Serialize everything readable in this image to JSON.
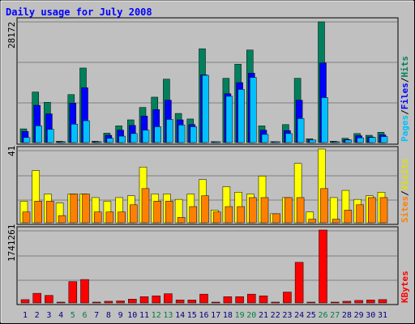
{
  "chart_data": [
    {
      "type": "bar",
      "panel": "hits-files-pages",
      "title": "Daily usage for July 2008",
      "ymax_label": "28172",
      "ylim": [
        0,
        28172
      ],
      "legend_labels": [
        "Pages",
        "Files",
        "Hits"
      ],
      "legend_colors": [
        "#00c0ff",
        "#0000ff",
        "#00805c"
      ],
      "categories": [
        "1",
        "2",
        "3",
        "4",
        "5",
        "6",
        "7",
        "8",
        "9",
        "10",
        "11",
        "12",
        "13",
        "14",
        "15",
        "16",
        "17",
        "18",
        "19",
        "20",
        "21",
        "22",
        "23",
        "24",
        "25",
        "26",
        "27",
        "28",
        "29",
        "30",
        "31"
      ],
      "series": [
        {
          "name": "Hits",
          "values": [
            3200,
            11800,
            9400,
            300,
            11200,
            17400,
            300,
            2200,
            3900,
            5300,
            8200,
            10600,
            14800,
            6800,
            5500,
            21900,
            200,
            15000,
            18300,
            21600,
            3900,
            200,
            4200,
            15000,
            900,
            28172,
            300,
            1000,
            2100,
            1700,
            2400
          ]
        },
        {
          "name": "Files",
          "values": [
            2600,
            8700,
            6700,
            200,
            9200,
            12800,
            200,
            1700,
            2900,
            4000,
            6200,
            7700,
            9900,
            5300,
            4200,
            15800,
            100,
            11400,
            14000,
            16200,
            2900,
            100,
            2800,
            9900,
            600,
            18600,
            200,
            700,
            1600,
            1300,
            1800
          ]
        },
        {
          "name": "Pages",
          "values": [
            1200,
            3900,
            3100,
            100,
            4300,
            5100,
            100,
            1000,
            1500,
            2100,
            2900,
            3700,
            5400,
            4100,
            3700,
            15700,
            100,
            10800,
            12400,
            15200,
            1900,
            100,
            2100,
            5600,
            600,
            10500,
            100,
            600,
            1100,
            1200,
            1400
          ]
        }
      ]
    },
    {
      "type": "bar",
      "panel": "visits-sites",
      "ymax_label": "41",
      "ylim": [
        0,
        41
      ],
      "legend_labels": [
        "Sites",
        "Visits"
      ],
      "legend_colors": [
        "#ff8000",
        "#ffff00"
      ],
      "categories": [
        "1",
        "2",
        "3",
        "4",
        "5",
        "6",
        "7",
        "8",
        "9",
        "10",
        "11",
        "12",
        "13",
        "14",
        "15",
        "16",
        "17",
        "18",
        "19",
        "20",
        "21",
        "22",
        "23",
        "24",
        "25",
        "26",
        "27",
        "28",
        "29",
        "30",
        "31"
      ],
      "series": [
        {
          "name": "Visits",
          "values": [
            12,
            29,
            16,
            11,
            16,
            16,
            14,
            12,
            14,
            15,
            31,
            16,
            16,
            13,
            16,
            24,
            7,
            20,
            17,
            16,
            26,
            5,
            14,
            33,
            6,
            41,
            14,
            18,
            13,
            15,
            17
          ]
        },
        {
          "name": "Sites",
          "values": [
            6,
            12,
            12,
            4,
            16,
            16,
            6,
            6,
            6,
            10,
            19,
            12,
            12,
            3,
            9,
            15,
            6,
            9,
            9,
            14,
            14,
            5,
            14,
            14,
            2,
            19,
            2,
            7,
            10,
            14,
            14
          ]
        }
      ]
    },
    {
      "type": "bar",
      "panel": "kbytes",
      "ymax_label": "1741261",
      "ylim": [
        0,
        1741261
      ],
      "legend_labels": [
        "KBytes"
      ],
      "legend_colors": [
        "#ff0000"
      ],
      "categories": [
        "1",
        "2",
        "3",
        "4",
        "5",
        "6",
        "7",
        "8",
        "9",
        "10",
        "11",
        "12",
        "13",
        "14",
        "15",
        "16",
        "17",
        "18",
        "19",
        "20",
        "21",
        "22",
        "23",
        "24",
        "25",
        "26",
        "27",
        "28",
        "29",
        "30",
        "31"
      ],
      "series": [
        {
          "name": "KBytes",
          "values": [
            79000,
            230000,
            180000,
            20000,
            510000,
            560000,
            20000,
            40000,
            48000,
            90000,
            150000,
            170000,
            220000,
            70000,
            70000,
            210000,
            20000,
            150000,
            150000,
            210000,
            170000,
            20000,
            260000,
            970000,
            20000,
            1741261,
            20000,
            40000,
            60000,
            70000,
            80000
          ]
        }
      ]
    }
  ],
  "weekend_days": [
    "5",
    "6",
    "12",
    "13",
    "19",
    "20",
    "26",
    "27"
  ],
  "colors": {
    "background": "#c0c0c0",
    "title": "#0000ff",
    "axis_label_normal": "#000080",
    "axis_label_weekend": "#008040",
    "separator": "#0000ff"
  }
}
